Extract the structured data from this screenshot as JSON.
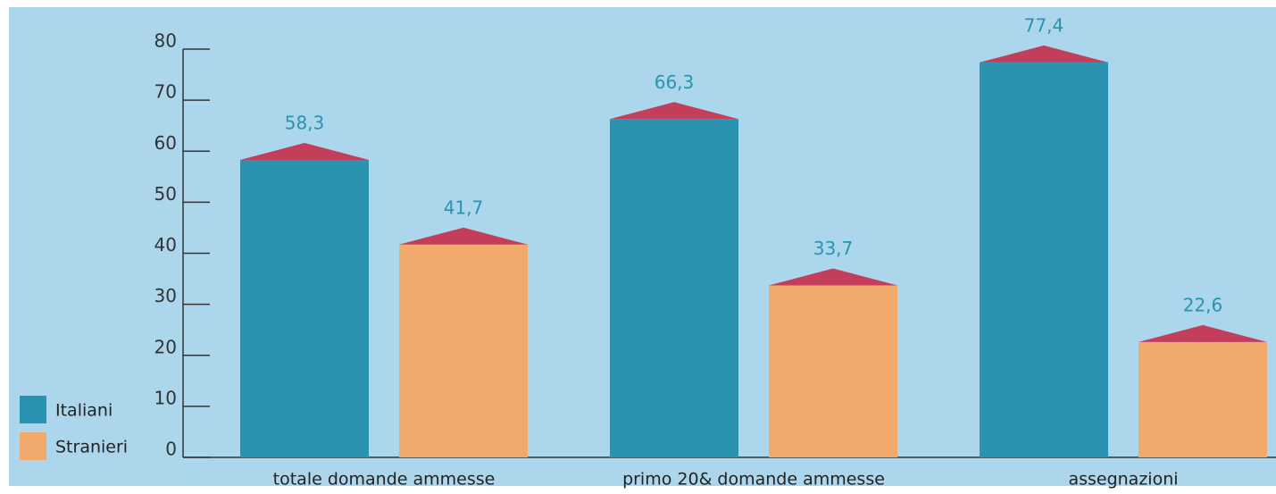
{
  "chart_data": {
    "type": "bar",
    "categories": [
      "totale domande ammesse",
      "primo 20& domande ammesse",
      "assegnazioni"
    ],
    "series": [
      {
        "name": "Italiani",
        "color": "#2a93b0",
        "values": [
          58.3,
          66.3,
          77.4
        ],
        "value_labels": [
          "58,3",
          "66,3",
          "77,4"
        ]
      },
      {
        "name": "Stranieri",
        "color": "#f2aa6c",
        "values": [
          41.7,
          33.7,
          22.6
        ],
        "value_labels": [
          "41,7",
          "33,7",
          "22,6"
        ]
      }
    ],
    "cap_color": "#c23e5a",
    "label_color": "#2a93b0",
    "ylim": [
      0,
      80
    ],
    "yticks": [
      0,
      10,
      20,
      30,
      40,
      50,
      60,
      70,
      80
    ],
    "legend": "lower-left"
  }
}
